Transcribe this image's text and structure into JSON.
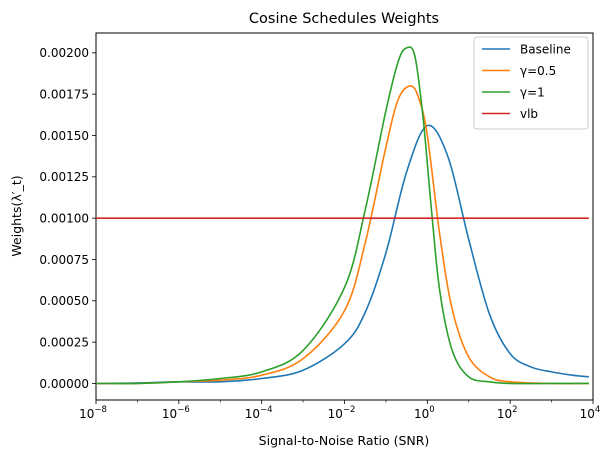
{
  "chart_data": {
    "type": "line",
    "title": "Cosine Schedules Weights",
    "xlabel": "Signal-to-Noise Ratio (SNR)",
    "ylabel": "Weights(λ′_t)",
    "xscale": "log",
    "xlim_exponent": [
      -8,
      4
    ],
    "xticks": [
      {
        "exp": -8,
        "base": "10",
        "power": "−8"
      },
      {
        "exp": -6,
        "base": "10",
        "power": "−6"
      },
      {
        "exp": -4,
        "base": "10",
        "power": "−4"
      },
      {
        "exp": -2,
        "base": "10",
        "power": "−2"
      },
      {
        "exp": 0,
        "base": "10",
        "power": "0"
      },
      {
        "exp": 2,
        "base": "10",
        "power": "2"
      },
      {
        "exp": 4,
        "base": "10",
        "power": "4"
      }
    ],
    "ylim": [
      -0.0001,
      0.00212
    ],
    "yticks": [
      {
        "value": 0.0,
        "label": "0.00000"
      },
      {
        "value": 0.00025,
        "label": "0.00025"
      },
      {
        "value": 0.0005,
        "label": "0.00050"
      },
      {
        "value": 0.00075,
        "label": "0.00075"
      },
      {
        "value": 0.001,
        "label": "0.00100"
      },
      {
        "value": 0.00125,
        "label": "0.00125"
      },
      {
        "value": 0.0015,
        "label": "0.00150"
      },
      {
        "value": 0.00175,
        "label": "0.00175"
      },
      {
        "value": 0.002,
        "label": "0.00200"
      }
    ],
    "grid": false,
    "legend_position": "top-right",
    "series": [
      {
        "name": "Baseline",
        "color": "#1f77b4",
        "x_exponent": [
          -8,
          -7,
          -6,
          -5,
          -4,
          -3,
          -2,
          -1.5,
          -1,
          -0.5,
          0,
          0.5,
          1,
          1.5,
          2,
          2.5,
          3,
          3.5,
          3.9
        ],
        "y": [
          0.0,
          3e-06,
          1e-05,
          1e-05,
          3e-05,
          8e-05,
          0.00024,
          0.00043,
          0.00079,
          0.00128,
          0.00156,
          0.00137,
          0.00087,
          0.00042,
          0.00018,
          0.0001,
          7e-05,
          5e-05,
          4e-05
        ]
      },
      {
        "name": "γ=0.5",
        "color": "#ff7f0e",
        "x_exponent": [
          -8,
          -7,
          -6,
          -5,
          -4,
          -3,
          -2,
          -1.5,
          -1,
          -0.7,
          -0.4,
          -0.2,
          0,
          0.3,
          0.6,
          1,
          1.5,
          2,
          3,
          3.9
        ],
        "y": [
          0.0,
          0.0,
          1e-05,
          2e-05,
          5e-05,
          0.00015,
          0.00044,
          0.00085,
          0.00143,
          0.00172,
          0.0018,
          0.00172,
          0.0015,
          0.0009,
          0.00045,
          0.00016,
          4e-05,
          1e-05,
          0.0,
          0.0
        ]
      },
      {
        "name": "γ=1",
        "color": "#2ca02c",
        "x_exponent": [
          -8,
          -7,
          -6,
          -5,
          -4,
          -3,
          -2,
          -1.5,
          -1,
          -0.7,
          -0.5,
          -0.3,
          -0.1,
          0.1,
          0.3,
          0.6,
          1,
          1.5,
          2,
          3,
          3.9
        ],
        "y": [
          0.0,
          0.0,
          1e-05,
          3e-05,
          7e-05,
          0.0002,
          0.00058,
          0.00105,
          0.00165,
          0.00195,
          0.00203,
          0.00198,
          0.0016,
          0.00105,
          0.00056,
          0.0002,
          4e-05,
          1e-05,
          0.0,
          0.0,
          0.0
        ]
      },
      {
        "name": "vlb",
        "color": "#d62728",
        "x_exponent": [
          -8,
          3.9
        ],
        "y": [
          0.001,
          0.001
        ]
      }
    ]
  }
}
